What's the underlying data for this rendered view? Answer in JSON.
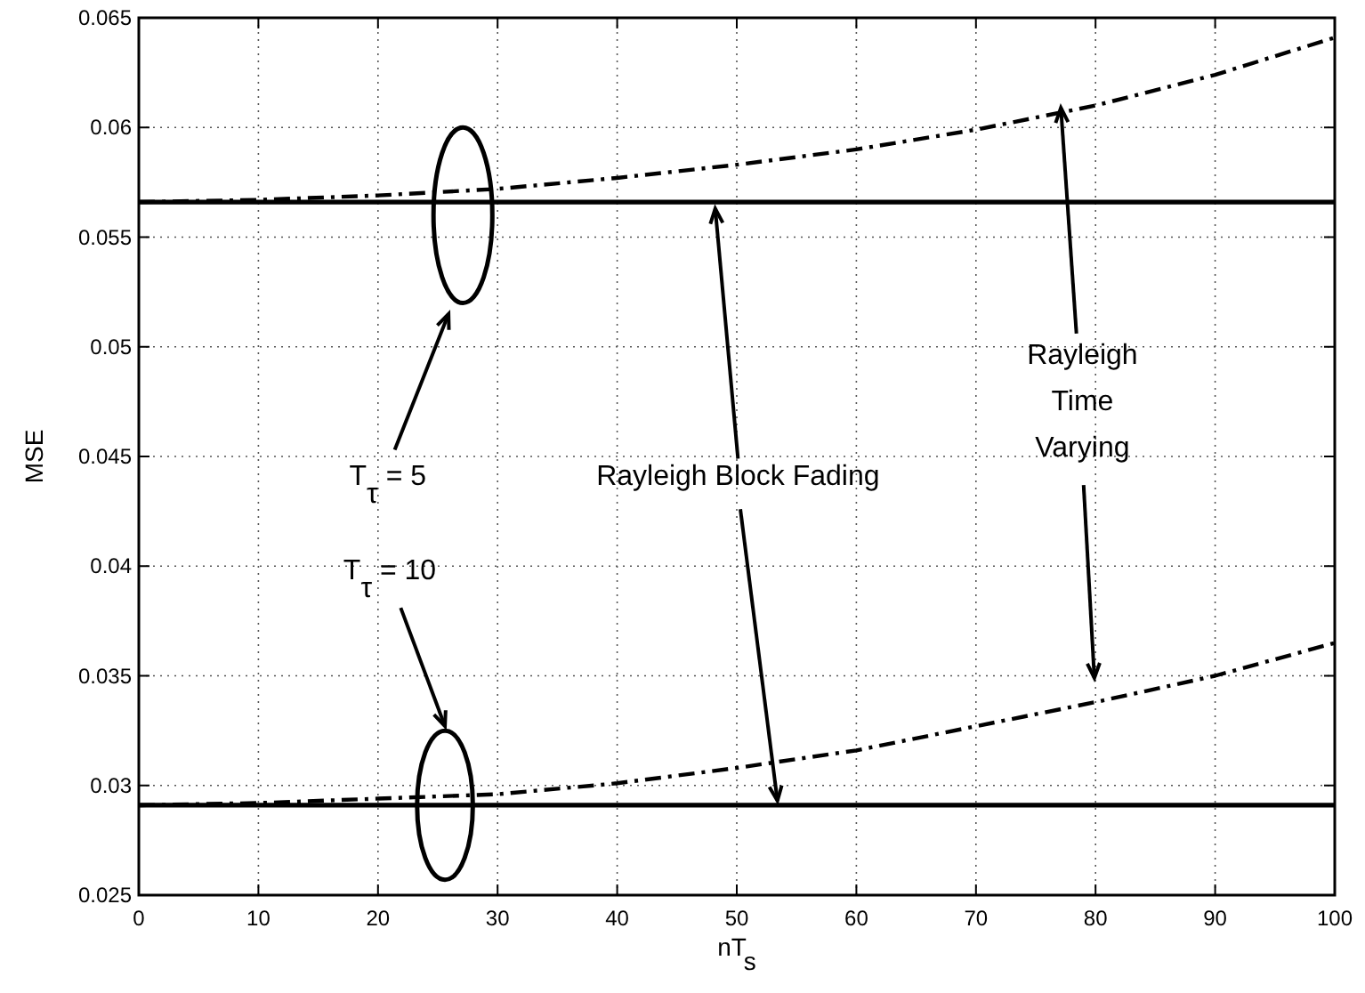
{
  "chart_data": {
    "type": "line",
    "xlabel": "nT$_{s}$",
    "ylabel": "MSE",
    "xlim": [
      0,
      100
    ],
    "xticks": [
      0,
      10,
      20,
      30,
      40,
      50,
      60,
      70,
      80,
      90,
      100
    ],
    "ylim": [
      0.025,
      0.065
    ],
    "yticks": [
      0.025,
      0.03,
      0.035,
      0.04,
      0.045,
      0.05,
      0.055,
      0.06,
      0.065
    ],
    "grid": true,
    "marker": "none",
    "series": [
      {
        "color": "#000000",
        "line_style": "solid",
        "x": [
          0,
          100
        ],
        "values": [
          0.0566,
          0.0566
        ]
      },
      {
        "color": "#000000",
        "line_style": "dashed",
        "x": [
          0,
          10,
          20,
          30,
          40,
          50,
          60,
          70,
          80,
          90,
          100
        ],
        "values": [
          0.0566,
          0.0567,
          0.0569,
          0.0572,
          0.0577,
          0.0583,
          0.059,
          0.0599,
          0.061,
          0.0624,
          0.0641
        ]
      },
      {
        "color": "#000000",
        "line_style": "solid",
        "x": [
          0,
          100
        ],
        "values": [
          0.0291,
          0.0291
        ]
      },
      {
        "color": "#000000",
        "line_style": "dashed",
        "x": [
          0,
          10,
          20,
          30,
          40,
          50,
          60,
          70,
          80,
          90,
          100
        ],
        "values": [
          0.0291,
          0.0292,
          0.0294,
          0.0296,
          0.0301,
          0.0308,
          0.0316,
          0.0327,
          0.0338,
          0.035,
          0.0365
        ]
      }
    ],
    "annotations": [
      "T$_{τ}$ = 5",
      "T$_{τ}$ = 10",
      {
        "text": "Rayleigh Block Fading",
        "x": 48.2,
        "y": 0.0563
      },
      {
        "text": "Rayleigh Time Varying",
        "x": 77.1,
        "y": 0.0609
      }
    ]
  }
}
